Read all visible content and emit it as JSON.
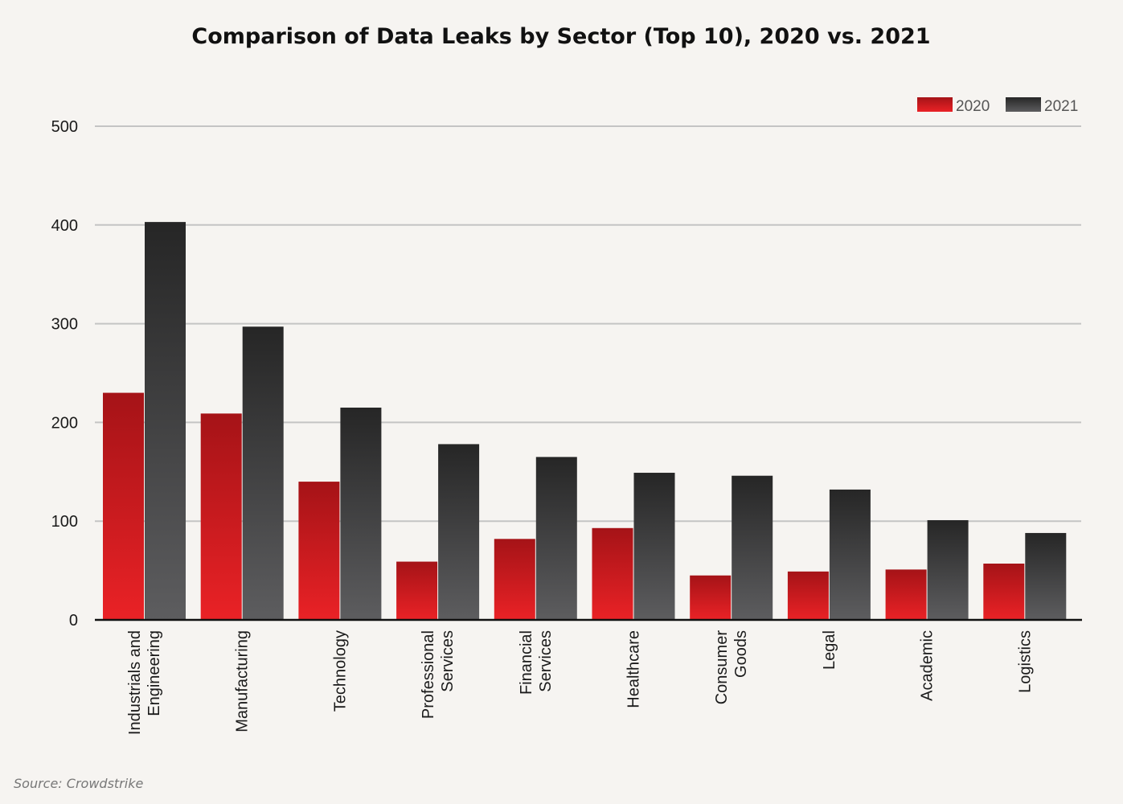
{
  "chart_data": {
    "type": "bar",
    "title": "Comparison of Data Leaks by Sector (Top 10), 2020 vs. 2021",
    "source": "Source: Crowdstrike",
    "categories": [
      [
        "Industrials and",
        "Engineering"
      ],
      [
        "Manufacturing"
      ],
      [
        "Technology"
      ],
      [
        "Professional",
        "Services"
      ],
      [
        "Financial",
        "Services"
      ],
      [
        "Healthcare"
      ],
      [
        "Consumer",
        "Goods"
      ],
      [
        "Legal"
      ],
      [
        "Academic"
      ],
      [
        "Logistics"
      ]
    ],
    "series": [
      {
        "name": "2020",
        "values": [
          230,
          209,
          140,
          59,
          82,
          93,
          45,
          49,
          51,
          57
        ]
      },
      {
        "name": "2021",
        "values": [
          403,
          297,
          215,
          178,
          165,
          149,
          146,
          132,
          101,
          88
        ]
      }
    ],
    "ylim": [
      0,
      500
    ],
    "yticks": [
      0,
      100,
      200,
      300,
      400,
      500
    ],
    "grid": true,
    "legend_position": "top-right",
    "colors": {
      "2020_top": "#a51317",
      "2020_bottom": "#ea2226",
      "2021_top": "#262626",
      "2021_bottom": "#5d5d5f",
      "grid": "#c4c4c4",
      "axis": "#111111"
    }
  }
}
